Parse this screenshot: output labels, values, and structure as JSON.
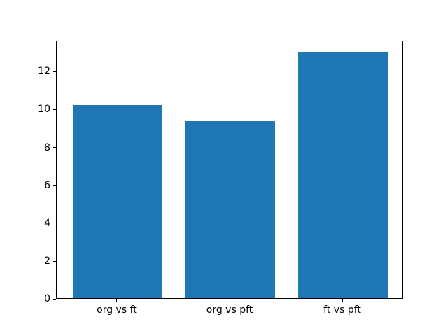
{
  "figure": {
    "background": "#ffffff"
  },
  "chart_data": {
    "type": "bar",
    "categories": [
      "org vs ft",
      "org vs pft",
      "ft vs pft"
    ],
    "values": [
      10.2,
      9.35,
      13.0
    ],
    "title": "",
    "xlabel": "",
    "ylabel": "",
    "ylim": [
      0,
      13.65
    ],
    "xlim": [
      -0.54,
      2.54
    ],
    "yticks": [
      0,
      2,
      4,
      6,
      8,
      10,
      12
    ],
    "bar_width_fraction": 0.8,
    "grid": false,
    "legend": null,
    "colors": {
      "bar": "#1f77b4",
      "spine": "#000000",
      "tick_label": "#000000",
      "background": "#ffffff"
    }
  }
}
